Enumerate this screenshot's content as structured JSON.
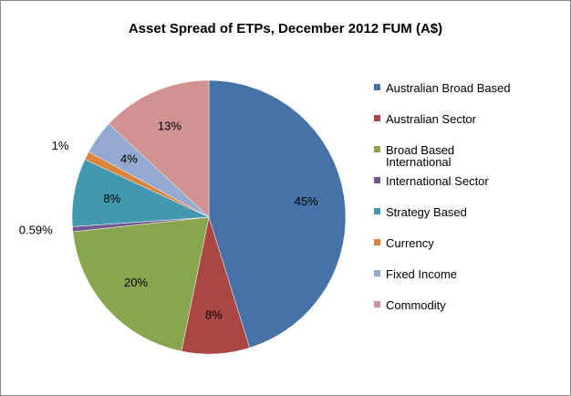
{
  "chart_data": {
    "type": "pie",
    "title": "Asset Spread of ETPs, December 2012 FUM (A$)",
    "categories": [
      "Australian Broad Based",
      "Australian Sector",
      "Broad Based International",
      "International Sector",
      "Strategy Based",
      "Currency",
      "Fixed Income",
      "Commodity"
    ],
    "values": [
      45,
      8,
      20,
      0.59,
      8,
      1,
      4,
      13
    ],
    "value_labels": [
      "45%",
      "8%",
      "20%",
      "0.59%",
      "8%",
      "1%",
      "4%",
      "13%"
    ],
    "colors": [
      "#4572a7",
      "#aa4643",
      "#89a54e",
      "#71588f",
      "#4198af",
      "#db843d",
      "#93a9cf",
      "#d19392"
    ],
    "legend": "right"
  }
}
